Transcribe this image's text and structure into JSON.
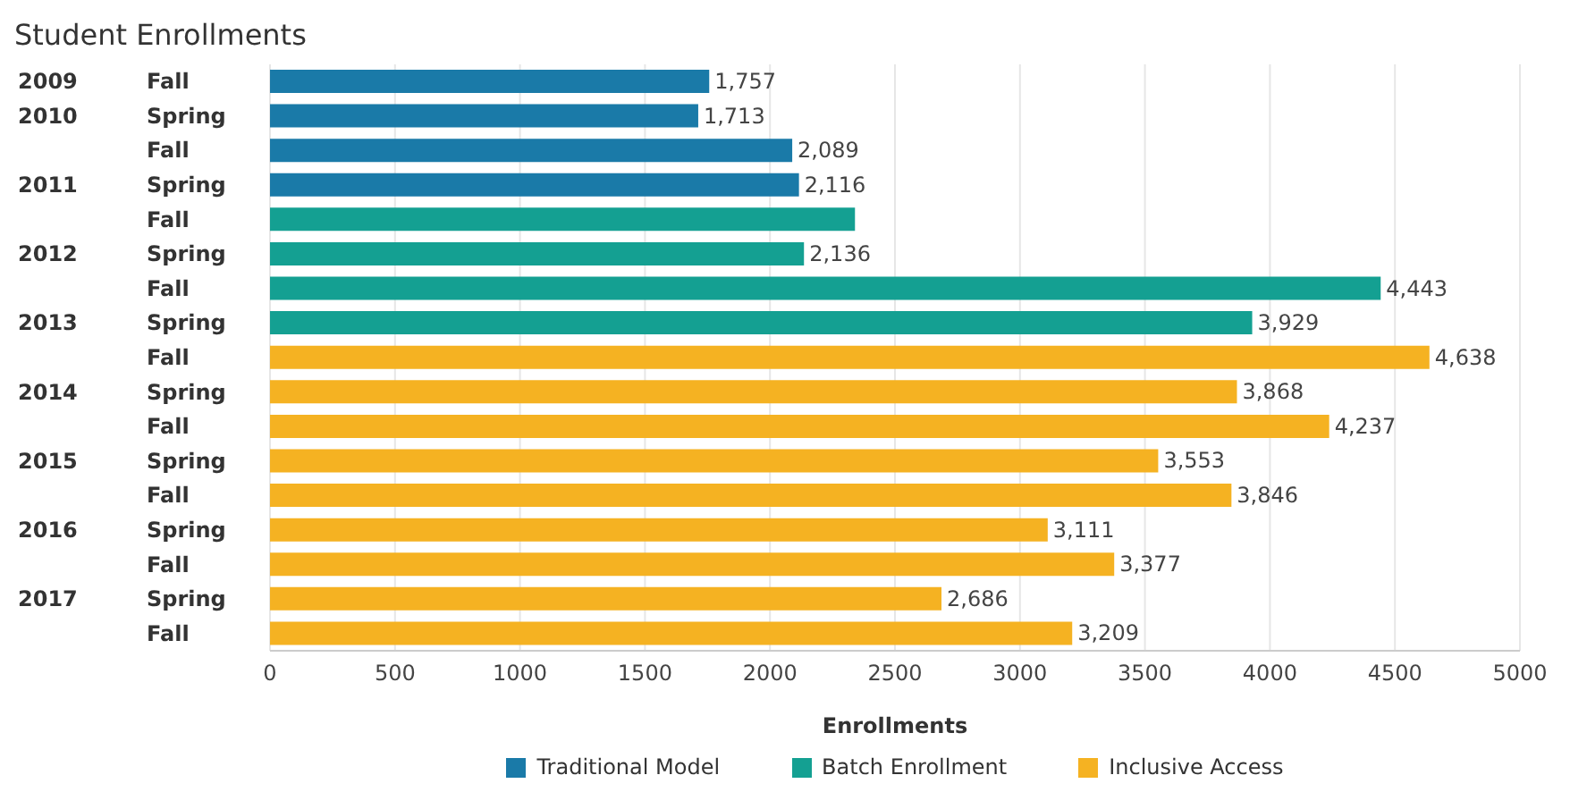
{
  "chart_data": {
    "type": "bar",
    "orientation": "horizontal",
    "stacked": true,
    "title": "Student Enrollments",
    "xlabel": "Enrollments",
    "categories": [
      "2009 Fall",
      "2010 Spring",
      "Fall",
      "2011 Spring",
      "Fall",
      "2012 Spring",
      "Fall",
      "2013 Spring",
      "Fall",
      "2014 Spring",
      "Fall",
      "2015 Spring",
      "Fall",
      "2016 Spring",
      "Fall",
      "2017 Spring",
      "Fall"
    ],
    "series": [
      {
        "name": "Traditional Model",
        "color": "#1a7aa8",
        "values": [
          1757,
          1713,
          2089,
          2116,
          null,
          null,
          null,
          null,
          null,
          null,
          null,
          null,
          null,
          null,
          null,
          null,
          null
        ],
        "value_labels": [
          "1,757",
          "1,713",
          "2,089",
          "2,116",
          null,
          null,
          null,
          null,
          null,
          null,
          null,
          null,
          null,
          null,
          null,
          null,
          null
        ]
      },
      {
        "name": "Batch Enrollment",
        "color": "#14a092",
        "values": [
          null,
          null,
          null,
          null,
          2340,
          2136,
          4443,
          3929,
          null,
          null,
          null,
          null,
          null,
          null,
          null,
          null,
          null
        ],
        "value_labels": [
          null,
          null,
          null,
          null,
          null,
          "2,136",
          "4,443",
          "3,929",
          null,
          null,
          null,
          null,
          null,
          null,
          null,
          null,
          null
        ]
      },
      {
        "name": "Inclusive Access",
        "color": "#f5b222",
        "values": [
          null,
          null,
          null,
          null,
          null,
          null,
          null,
          null,
          4638,
          3868,
          4237,
          3553,
          3846,
          3111,
          3377,
          2686,
          3209
        ],
        "value_labels": [
          null,
          null,
          null,
          null,
          null,
          null,
          null,
          null,
          "4,638",
          "3,868",
          "4,237",
          "3,553",
          "3,846",
          "3,111",
          "3,377",
          "2,686",
          "3,209"
        ]
      }
    ],
    "xlim": [
      0,
      5000
    ],
    "xticks": [
      0,
      500,
      1000,
      1500,
      2000,
      2500,
      3000,
      3500,
      4000,
      4500,
      5000
    ],
    "grid": "x",
    "legend": "bottom"
  }
}
